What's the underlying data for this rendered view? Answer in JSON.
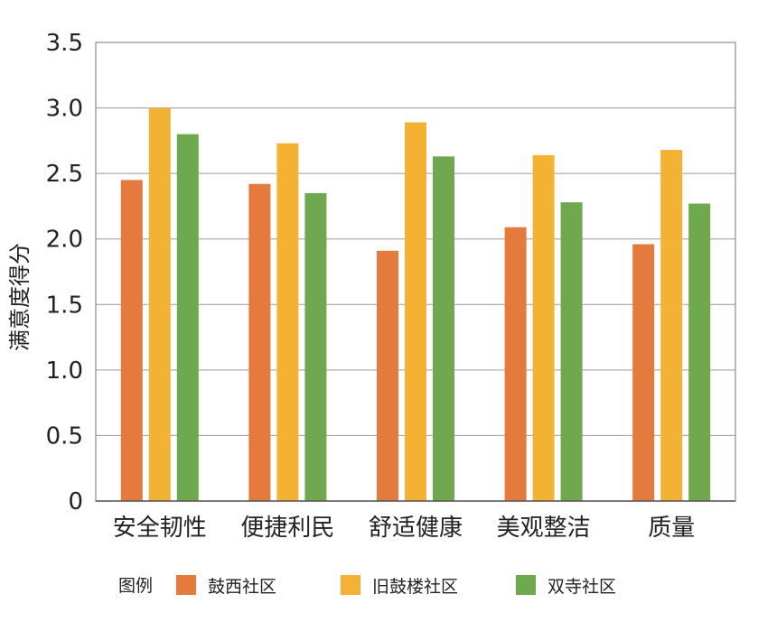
{
  "chart_data": {
    "type": "bar",
    "title": "",
    "xlabel": "",
    "ylabel": "满意度得分",
    "ylim": [
      0,
      3.5
    ],
    "yticks": [
      "0",
      "0.5",
      "1.0",
      "1.5",
      "2.0",
      "2.5",
      "3.0",
      "3.5"
    ],
    "grid": true,
    "categories": [
      "安全韧性",
      "便捷利民",
      "舒适健康",
      "美观整洁",
      "质量"
    ],
    "series": [
      {
        "name": "鼓西社区",
        "color": "#E57A3F",
        "values": [
          2.45,
          2.42,
          1.91,
          2.09,
          1.96
        ]
      },
      {
        "name": "旧鼓楼社区",
        "color": "#F3B234",
        "values": [
          3.0,
          2.73,
          2.89,
          2.64,
          2.68
        ]
      },
      {
        "name": "双寺社区",
        "color": "#6FA84F",
        "values": [
          2.8,
          2.35,
          2.63,
          2.28,
          2.27
        ]
      }
    ],
    "legend": {
      "title": "图例",
      "position": "bottom"
    }
  }
}
